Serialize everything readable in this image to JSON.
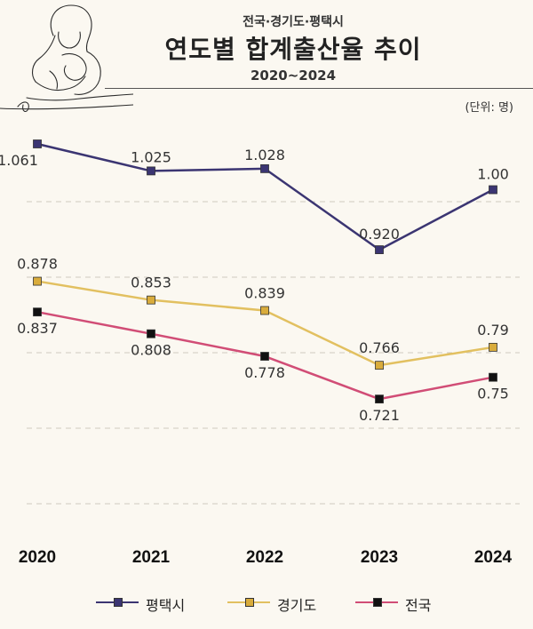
{
  "header": {
    "subtitle": "전국·경기도·평택시",
    "title": "연도별 합계출산율 추이",
    "range": "2020~2024",
    "unit": "(단위: 명)"
  },
  "chart_data": {
    "type": "line",
    "categories": [
      "2020",
      "2021",
      "2022",
      "2023",
      "2024"
    ],
    "series": [
      {
        "name": "평택시",
        "values": [
          1.061,
          1.025,
          1.028,
          0.92,
          1.0
        ],
        "labels": [
          "1.061",
          "1.025",
          "1.028",
          "0.920",
          "1.00"
        ],
        "color": "#3b3572"
      },
      {
        "name": "경기도",
        "values": [
          0.878,
          0.853,
          0.839,
          0.766,
          0.79
        ],
        "labels": [
          "0.878",
          "0.853",
          "0.839",
          "0.766",
          "0.79"
        ],
        "color": "#e2c060"
      },
      {
        "name": "전국",
        "values": [
          0.837,
          0.808,
          0.778,
          0.721,
          0.75
        ],
        "labels": [
          "0.837",
          "0.808",
          "0.778",
          "0.721",
          "0.75"
        ],
        "color": "#d14d76"
      }
    ],
    "marker_colors": [
      "#3b3572",
      "#d9ac3c",
      "#111111"
    ],
    "grid": true,
    "legend": "bottom",
    "xlabel": "",
    "ylabel": ""
  }
}
